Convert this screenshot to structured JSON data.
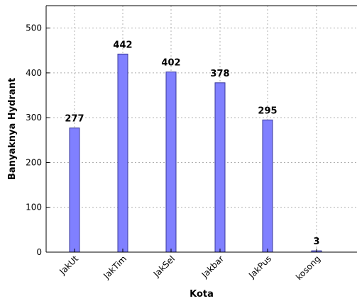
{
  "chart_data": {
    "type": "bar",
    "categories": [
      "JakUt",
      "JakTim",
      "JakSel",
      "Jakbar",
      "JakPus",
      "kosong"
    ],
    "values": [
      277,
      442,
      402,
      378,
      295,
      3
    ],
    "data_labels": [
      "277",
      "442",
      "402",
      "378",
      "295",
      "3"
    ],
    "xlabel": "Kota",
    "ylabel": "Banyaknya Hydrant",
    "ylim": [
      0,
      550
    ],
    "yticks": [
      0,
      100,
      200,
      300,
      400,
      500
    ],
    "grid": true,
    "bar_color": "#8080ff",
    "bar_edge_color": "#3a3a9a"
  }
}
